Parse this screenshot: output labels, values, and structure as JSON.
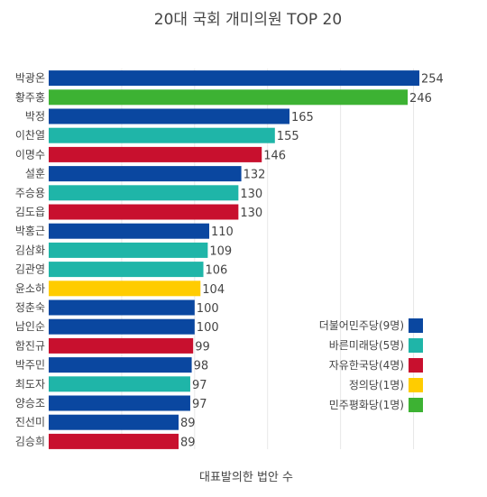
{
  "chart_data": {
    "type": "bar",
    "orientation": "horizontal",
    "title": "20대 국회 개미의원 TOP 20",
    "xlabel": "대표발의한 법안 수",
    "ylabel": "",
    "xlim": [
      0,
      254
    ],
    "grid": true,
    "legend_position": "bottom-right",
    "bars": [
      {
        "label": "박광온",
        "value": 254,
        "party": "더불어민주당"
      },
      {
        "label": "황주홍",
        "value": 246,
        "party": "민주평화당"
      },
      {
        "label": "박정",
        "value": 165,
        "party": "더불어민주당"
      },
      {
        "label": "이찬열",
        "value": 155,
        "party": "바른미래당"
      },
      {
        "label": "이명수",
        "value": 146,
        "party": "자유한국당"
      },
      {
        "label": "설훈",
        "value": 132,
        "party": "더불어민주당"
      },
      {
        "label": "주승용",
        "value": 130,
        "party": "바른미래당"
      },
      {
        "label": "김도읍",
        "value": 130,
        "party": "자유한국당"
      },
      {
        "label": "박홍근",
        "value": 110,
        "party": "더불어민주당"
      },
      {
        "label": "김삼화",
        "value": 109,
        "party": "바른미래당"
      },
      {
        "label": "김관영",
        "value": 106,
        "party": "바른미래당"
      },
      {
        "label": "윤소하",
        "value": 104,
        "party": "정의당"
      },
      {
        "label": "정춘숙",
        "value": 100,
        "party": "더불어민주당"
      },
      {
        "label": "남인순",
        "value": 100,
        "party": "더불어민주당"
      },
      {
        "label": "함진규",
        "value": 99,
        "party": "자유한국당"
      },
      {
        "label": "박주민",
        "value": 98,
        "party": "더불어민주당"
      },
      {
        "label": "최도자",
        "value": 97,
        "party": "바른미래당"
      },
      {
        "label": "양승조",
        "value": 97,
        "party": "더불어민주당"
      },
      {
        "label": "진선미",
        "value": 89,
        "party": "더불어민주당"
      },
      {
        "label": "김승희",
        "value": 89,
        "party": "자유한국당"
      }
    ],
    "legend": [
      {
        "party": "더불어민주당",
        "label": "더불어민주당(9명)",
        "color": "#0a47a0"
      },
      {
        "party": "바른미래당",
        "label": "바른미래당(5명)",
        "color": "#1fb5a8"
      },
      {
        "party": "자유한국당",
        "label": "자유한국당(4명)",
        "color": "#c8102e"
      },
      {
        "party": "정의당",
        "label": "정의당(1명)",
        "color": "#ffcc00"
      },
      {
        "party": "민주평화당",
        "label": "민주평화당(1명)",
        "color": "#3db233"
      }
    ]
  }
}
